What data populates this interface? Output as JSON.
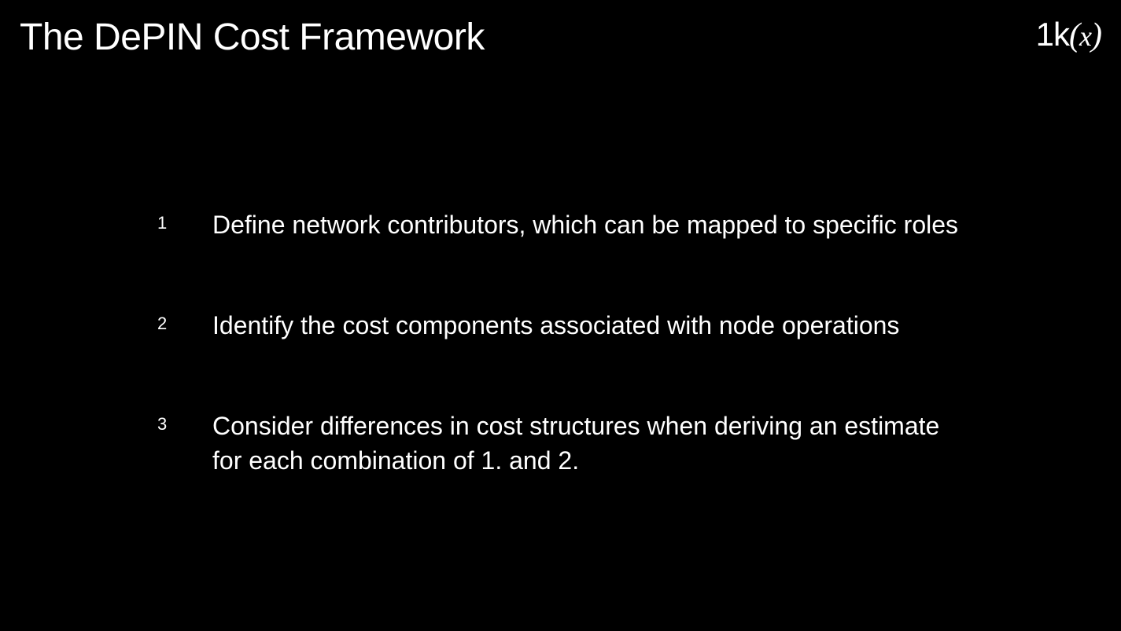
{
  "title": "The DePIN Cost Framework",
  "logo": {
    "prefix": "1k",
    "suffix": "(x)"
  },
  "items": [
    {
      "number": "1",
      "text": "Define network contributors, which can be mapped to specific roles"
    },
    {
      "number": "2",
      "text": "Identify the cost components associated with node operations"
    },
    {
      "number": "3",
      "text": "Consider differences in cost structures when deriving an estimate for each combination of 1. and 2."
    }
  ],
  "styling": {
    "background_color": "#000000",
    "text_color": "#ffffff",
    "title_fontsize": 48,
    "item_number_fontsize": 22,
    "item_text_fontsize": 32,
    "logo_fontsize": 42
  }
}
